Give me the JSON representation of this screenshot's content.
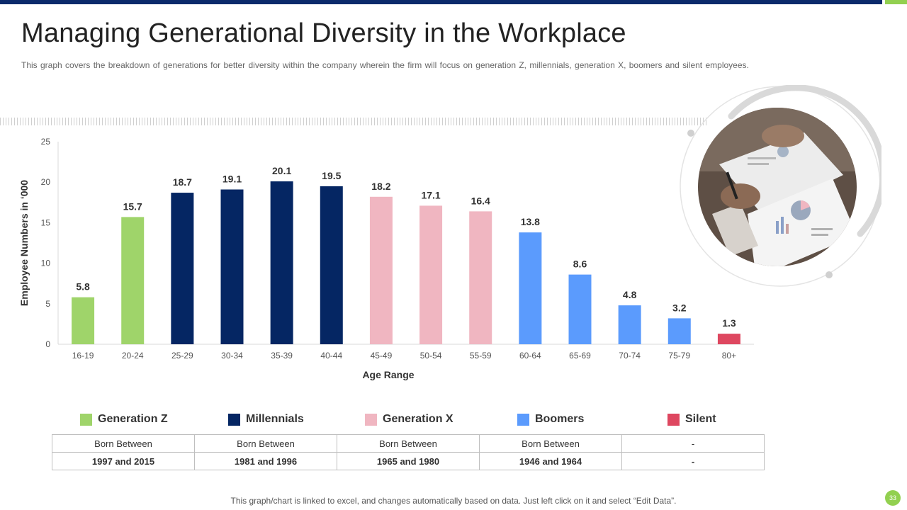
{
  "header": {
    "title": "Managing Generational Diversity in the Workplace",
    "subtitle": "This graph covers the breakdown  of generations for better diversity within the company wherein  the firm will focus on generation Z, millennials, generation X, boomers and silent employees."
  },
  "colors": {
    "brand": "#0b2a6b",
    "accent": "#92d050"
  },
  "chart_data": {
    "type": "bar",
    "title": "",
    "xlabel": "Age Range",
    "ylabel": "Employee Numbers in ‘000",
    "ylim": [
      0,
      25
    ],
    "yticks": [
      0,
      5,
      10,
      15,
      20,
      25
    ],
    "grid": false,
    "categories": [
      "16-19",
      "20-24",
      "25-29",
      "30-34",
      "35-39",
      "40-44",
      "45-49",
      "50-54",
      "55-59",
      "60-64",
      "65-69",
      "70-74",
      "75-79",
      "80+"
    ],
    "values": [
      5.8,
      15.7,
      18.7,
      19.1,
      20.1,
      19.5,
      18.2,
      17.1,
      16.4,
      13.8,
      8.6,
      4.8,
      3.2,
      1.3
    ],
    "data_labels": [
      "5.8",
      "15.7",
      "18.7",
      "19.1",
      "20.1",
      "19.5",
      "18.2",
      "17.1",
      "16.4",
      "13.8",
      "8.6",
      "4.8",
      "3.2",
      "1.3"
    ],
    "groups": [
      "genz",
      "genz",
      "mill",
      "mill",
      "mill",
      "mill",
      "genx",
      "genx",
      "genx",
      "boom",
      "boom",
      "boom",
      "boom",
      "silent"
    ],
    "series_colors": {
      "genz": "#9fd46a",
      "mill": "#052663",
      "genx": "#f0b6c1",
      "boom": "#5b9bfd",
      "silent": "#de4760"
    }
  },
  "legend": [
    {
      "key": "genz",
      "label": "Generation Z",
      "color": "#9fd46a"
    },
    {
      "key": "mill",
      "label": "Millennials",
      "color": "#052663"
    },
    {
      "key": "genx",
      "label": "Generation X",
      "color": "#f0b6c1"
    },
    {
      "key": "boom",
      "label": "Boomers",
      "color": "#5b9bfd"
    },
    {
      "key": "silent",
      "label": "Silent",
      "color": "#de4760"
    }
  ],
  "table": {
    "rows": [
      [
        "Born Between",
        "Born Between",
        "Born Between",
        "Born Between",
        "-"
      ],
      [
        "1997 and 2015",
        "1981 and 1996",
        "1965 and 1980",
        "1946 and 1964",
        "-"
      ]
    ]
  },
  "footer": {
    "note": "This graph/chart is linked to excel,  and changes automatically based on data. Just left click on it and select “Edit Data”.",
    "page_number": "33"
  }
}
